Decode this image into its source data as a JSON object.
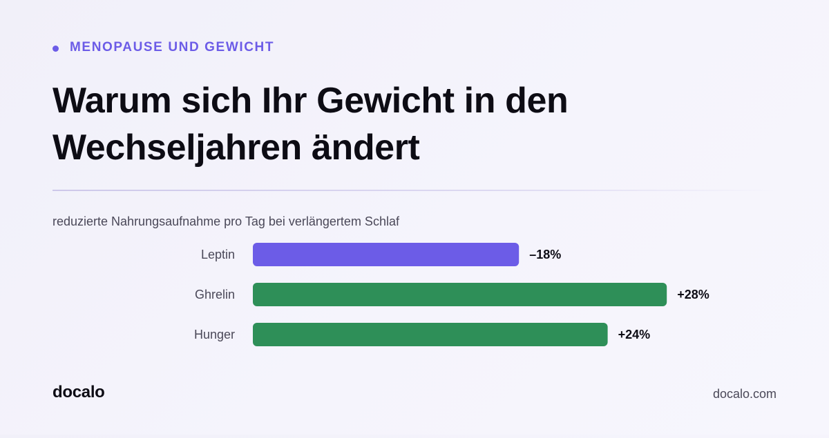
{
  "eyebrow": "MENOPAUSE UND GEWICHT",
  "headline": "Warum sich Ihr Gewicht in den Wechseljahren ändert",
  "caption": "reduzierte Nahrungsaufnahme pro Tag bei verlängertem Schlaf",
  "brand": "docalo",
  "site": "docalo.com",
  "colors": {
    "accent": "#6c5ce7",
    "negative_bar": "#6c5ce7",
    "positive_bar": "#2e8f58"
  },
  "chart_data": {
    "type": "bar",
    "orientation": "horizontal",
    "title": "reduzierte Nahrungsaufnahme pro Tag bei verlängertem Schlaf",
    "categories": [
      "Leptin",
      "Ghrelin",
      "Hunger"
    ],
    "values": [
      -18,
      28,
      24
    ],
    "value_labels": [
      "–18%",
      "+28%",
      "+24%"
    ],
    "bar_colors": [
      "#6c5ce7",
      "#2e8f58",
      "#2e8f58"
    ],
    "unit": "%",
    "scale": "bar length proportional to absolute value",
    "grid": false,
    "legend": "none"
  }
}
